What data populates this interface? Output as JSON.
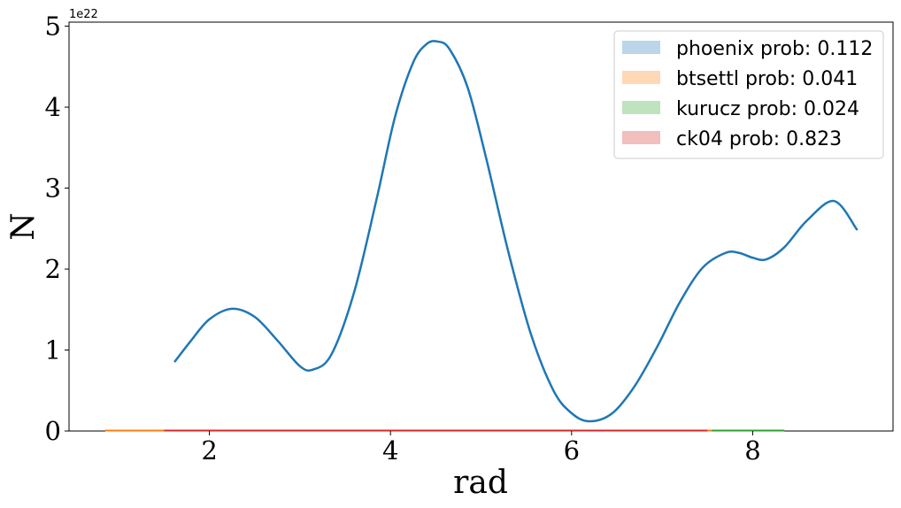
{
  "chart_data": {
    "type": "area",
    "xlabel": "rad",
    "ylabel": "N",
    "y_offset_label": "1e22",
    "xlim": [
      0.45,
      9.55
    ],
    "ylim": [
      0,
      5.05
    ],
    "x_ticks": [
      2,
      4,
      6,
      8
    ],
    "x_tick_labels": [
      "2",
      "4",
      "6",
      "8"
    ],
    "y_ticks": [
      0,
      1,
      2,
      3,
      4,
      5
    ],
    "y_tick_labels": [
      "0",
      "1",
      "2",
      "3",
      "4",
      "5"
    ],
    "grid": false,
    "legend_position": "top-right",
    "series": [
      {
        "name": "phoenix prob: 0.112",
        "color": "#1f77b4",
        "x": [
          1.62,
          1.8,
          2.0,
          2.25,
          2.5,
          2.75,
          3.0,
          3.15,
          3.35,
          3.6,
          3.85,
          4.05,
          4.25,
          4.4,
          4.52,
          4.65,
          4.85,
          5.05,
          5.3,
          5.55,
          5.8,
          6.0,
          6.2,
          6.45,
          6.7,
          6.95,
          7.2,
          7.45,
          7.7,
          7.85,
          8.0,
          8.15,
          8.35,
          8.6,
          8.9,
          9.15
        ],
        "y": [
          0.86,
          1.12,
          1.38,
          1.51,
          1.41,
          1.12,
          0.8,
          0.76,
          0.95,
          1.72,
          2.88,
          3.88,
          4.55,
          4.78,
          4.81,
          4.72,
          4.25,
          3.4,
          2.22,
          1.2,
          0.5,
          0.22,
          0.12,
          0.22,
          0.56,
          1.05,
          1.6,
          2.02,
          2.2,
          2.2,
          2.14,
          2.12,
          2.27,
          2.6,
          2.84,
          2.49
        ]
      },
      {
        "name": "btsettl prob: 0.041",
        "color": "#ff7f0e",
        "x": [
          0.85,
          7.55
        ],
        "y": [
          0,
          0
        ]
      },
      {
        "name": "kurucz prob: 0.024",
        "color": "#2ca02c",
        "x": [
          7.55,
          8.35
        ],
        "y": [
          0,
          0
        ]
      },
      {
        "name": "ck04 prob: 0.823",
        "color": "#d62728",
        "x": [
          1.5,
          7.5
        ],
        "y": [
          0,
          0
        ]
      }
    ]
  }
}
